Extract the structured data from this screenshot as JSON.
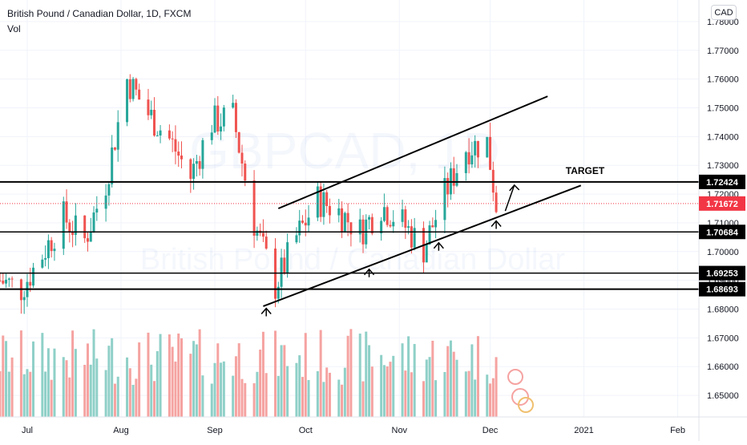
{
  "header": {
    "title": "British Pound / Canadian Dollar, 1D, FXCM",
    "subtitle": "Vol",
    "currency": "CAD"
  },
  "watermark": {
    "symbol": "GBPCAD, 1D",
    "name": "British Pound / Canadian Dollar"
  },
  "annotations": {
    "target_label": "TARGET"
  },
  "colors": {
    "up": "#26a69a",
    "down": "#ef5350",
    "vol_up": "#8fd0c8",
    "vol_down": "#f5a3a1",
    "last_price": "#f23645",
    "line": "#000000"
  },
  "chart_data": {
    "type": "candlestick",
    "title": "British Pound / Canadian Dollar, 1D, FXCM",
    "y_range": [
      1.6425,
      1.7875
    ],
    "y_ticks": [
      "1.78000",
      "1.77000",
      "1.76000",
      "1.75000",
      "1.74000",
      "1.73000",
      "1.72000",
      "1.71000",
      "1.70000",
      "1.69000",
      "1.68000",
      "1.67000",
      "1.66000",
      "1.65000"
    ],
    "x_labels": [
      {
        "label": "Jul",
        "date": "2020-07-01"
      },
      {
        "label": "Aug",
        "date": "2020-08-01"
      },
      {
        "label": "Sep",
        "date": "2020-09-01"
      },
      {
        "label": "Oct",
        "date": "2020-10-01"
      },
      {
        "label": "Nov",
        "date": "2020-11-01"
      },
      {
        "label": "Dec",
        "date": "2020-12-01"
      },
      {
        "label": "2021",
        "date": "2021-01-01"
      },
      {
        "label": "Feb",
        "date": "2021-02-01"
      }
    ],
    "x_range": [
      "2020-06-22",
      "2021-02-08"
    ],
    "price_path": [
      [
        "2020-06-22",
        1.69
      ],
      [
        "2020-06-29",
        1.687
      ],
      [
        "2020-07-06",
        1.699
      ],
      [
        "2020-07-13",
        1.712
      ],
      [
        "2020-07-20",
        1.704
      ],
      [
        "2020-07-27",
        1.724
      ],
      [
        "2020-08-03",
        1.76
      ],
      [
        "2020-08-10",
        1.748
      ],
      [
        "2020-08-17",
        1.739
      ],
      [
        "2020-08-24",
        1.726
      ],
      [
        "2020-08-31",
        1.745
      ],
      [
        "2020-09-07",
        1.747
      ],
      [
        "2020-09-14",
        1.71
      ],
      [
        "2020-09-21",
        1.688
      ],
      [
        "2020-09-28",
        1.705
      ],
      [
        "2020-10-05",
        1.718
      ],
      [
        "2020-10-12",
        1.714
      ],
      [
        "2020-10-19",
        1.707
      ],
      [
        "2020-10-26",
        1.716
      ],
      [
        "2020-11-02",
        1.71
      ],
      [
        "2020-11-09",
        1.701
      ],
      [
        "2020-11-16",
        1.72
      ],
      [
        "2020-11-23",
        1.736
      ],
      [
        "2020-11-30",
        1.738
      ],
      [
        "2020-12-03",
        1.7167
      ]
    ],
    "horizontal_levels": [
      {
        "value": 1.72424,
        "label": "1.72424"
      },
      {
        "value": 1.70684,
        "label": "1.70684"
      },
      {
        "value": 1.69253,
        "label": "1.69253"
      },
      {
        "value": 1.68693,
        "label": "1.68693"
      }
    ],
    "last_price": {
      "value": 1.71672,
      "label": "1.71672"
    },
    "trendlines": [
      {
        "name": "upper",
        "from": [
          "2020-09-22",
          1.715
        ],
        "to": [
          "2020-12-20",
          1.754
        ]
      },
      {
        "name": "lower",
        "from": [
          "2020-09-17",
          1.681
        ],
        "to": [
          "2020-12-31",
          1.723
        ]
      }
    ],
    "grid": true,
    "legend": "none"
  }
}
